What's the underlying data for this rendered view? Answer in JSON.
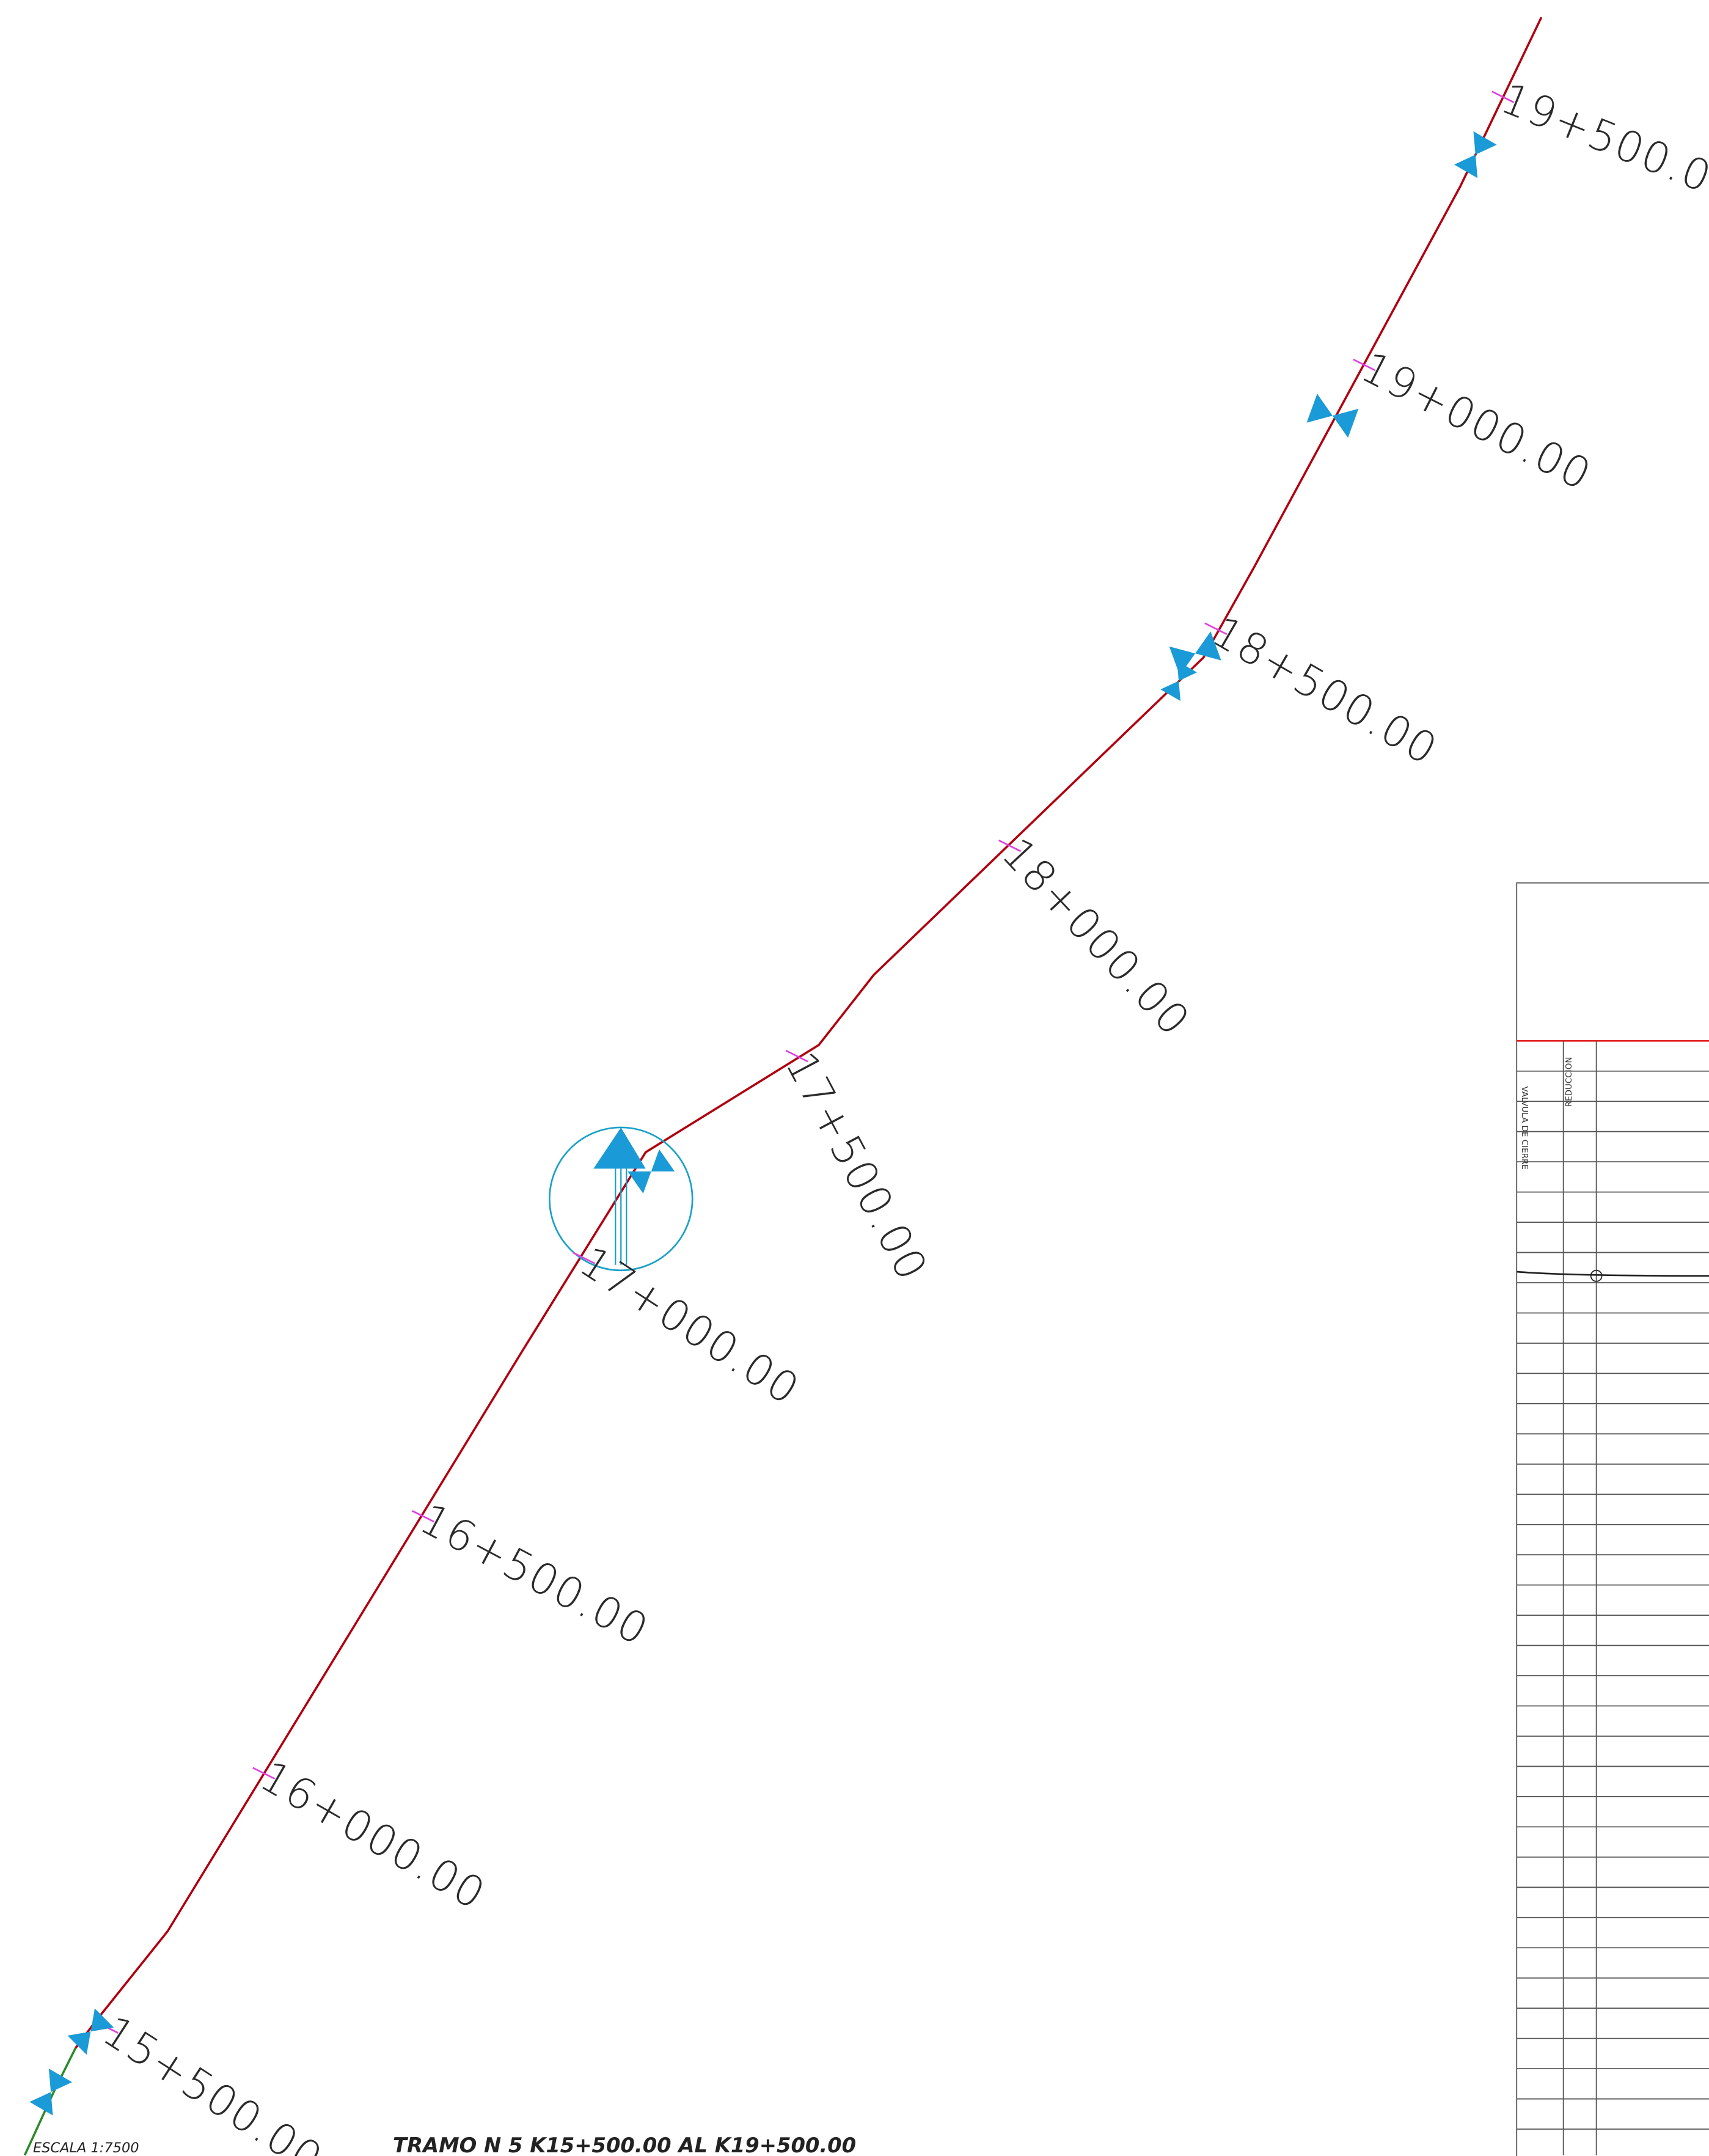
{
  "drawing": {
    "stations": [
      "19+500.00",
      "19+000.00",
      "18+500.00",
      "18+000.00",
      "17+500.00",
      "17+000.00",
      "16+500.00",
      "16+000.00",
      "15+500.00"
    ],
    "scale": "ESCALA 1:7500",
    "title": "TRAMO N 5 K15+500.00 AL K19+500.00",
    "table_headers": [
      "VALVULA DE CIERRE",
      "REDUCCION"
    ]
  }
}
